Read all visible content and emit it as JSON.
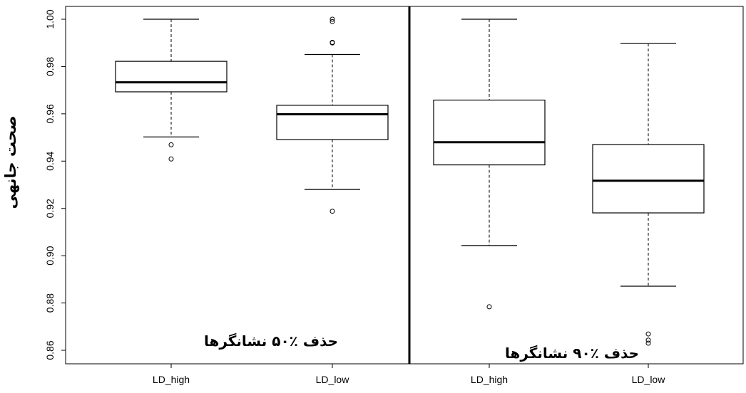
{
  "chart_data": {
    "type": "boxplot",
    "title": "",
    "ylabel": "صحت جانهی",
    "ylim": [
      0.855,
      1.0055
    ],
    "yticks": [
      0.86,
      0.88,
      0.9,
      0.92,
      0.94,
      0.96,
      0.98,
      1.0
    ],
    "ytick_labels": [
      "0.86",
      "0.88",
      "0.90",
      "0.92",
      "0.94",
      "0.96",
      "0.98",
      "1.00"
    ],
    "grid": false,
    "panels": [
      {
        "label": "حذف ٪۵۰ نشانگرها",
        "boxes": [
          {
            "category": "LD_high",
            "whisker_low": 0.9502,
            "q1": 0.9693,
            "median": 0.9733,
            "q3": 0.9822,
            "whisker_high": 1.0,
            "outliers": [
              0.9469,
              0.9409
            ]
          },
          {
            "category": "LD_low",
            "whisker_low": 0.928,
            "q1": 0.9491,
            "median": 0.9598,
            "q3": 0.9636,
            "whisker_high": 0.9851,
            "outliers": [
              1.0,
              0.999,
              0.9902,
              0.99,
              0.9188
            ]
          }
        ]
      },
      {
        "label": "حذف ٪۹۰ نشانگرها",
        "boxes": [
          {
            "category": "LD_high",
            "whisker_low": 0.9043,
            "q1": 0.9384,
            "median": 0.948,
            "q3": 0.9658,
            "whisker_high": 1.0,
            "outliers": [
              0.8784
            ]
          },
          {
            "category": "LD_low",
            "whisker_low": 0.8871,
            "q1": 0.9181,
            "median": 0.9317,
            "q3": 0.947,
            "whisker_high": 0.9897,
            "outliers": [
              0.8669,
              0.8643,
              0.863
            ]
          }
        ]
      }
    ]
  }
}
